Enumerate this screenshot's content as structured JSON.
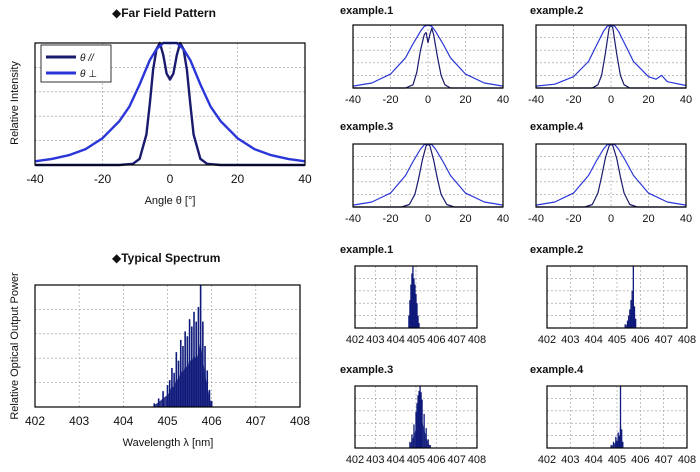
{
  "colors": {
    "parallel": "#1a1a6e",
    "perpendicular": "#2a36d8",
    "spectrum": "#0f1a7a",
    "grid": "#9a9a9a",
    "frame": "#000000"
  },
  "far_field": {
    "title": "◆Far Field Pattern",
    "xlabel": "Angle θ [°]",
    "ylabel": "Relative Intensity",
    "legend": [
      "θ //",
      "θ ⊥"
    ]
  },
  "spectrum": {
    "title": "◆Typical Spectrum",
    "xlabel": "Wavelength λ [nm]",
    "ylabel": "Relative Optical Output Power"
  },
  "chart_data": [
    {
      "id": "ffp-main",
      "type": "line",
      "title": "Far Field Pattern",
      "xlabel": "Angle θ [°]",
      "ylabel": "Relative Intensity",
      "xlim": [
        -40,
        40
      ],
      "ylim": [
        0,
        1
      ],
      "xticks": [
        -40,
        -20,
        0,
        20,
        40
      ],
      "grid": true,
      "legend": "top-left",
      "series": [
        {
          "name": "θ //",
          "x": [
            -40,
            -15,
            -11,
            -9,
            -7,
            -6,
            -5,
            -4,
            -3,
            -2,
            -1,
            0,
            1,
            2,
            3,
            4,
            5,
            6,
            7,
            9,
            11,
            15,
            40
          ],
          "y": [
            0,
            0,
            0.01,
            0.05,
            0.25,
            0.5,
            0.78,
            0.95,
            1.0,
            0.9,
            0.75,
            0.7,
            0.75,
            0.9,
            1.0,
            0.95,
            0.78,
            0.5,
            0.25,
            0.05,
            0.01,
            0,
            0
          ]
        },
        {
          "name": "θ ⊥",
          "x": [
            -40,
            -35,
            -30,
            -25,
            -20,
            -15,
            -12,
            -9,
            -6,
            -4,
            -2,
            0,
            2,
            4,
            6,
            9,
            12,
            15,
            20,
            25,
            30,
            35,
            40
          ],
          "y": [
            0.03,
            0.05,
            0.08,
            0.13,
            0.22,
            0.36,
            0.48,
            0.66,
            0.86,
            0.95,
            1.0,
            1.0,
            1.0,
            0.95,
            0.86,
            0.66,
            0.48,
            0.36,
            0.22,
            0.13,
            0.08,
            0.05,
            0.03
          ]
        }
      ]
    },
    {
      "id": "ffp-ex1",
      "type": "line",
      "title": "example.1",
      "xlim": [
        -40,
        40
      ],
      "ylim": [
        0,
        1
      ],
      "xticks": [
        -40,
        -20,
        0,
        20,
        40
      ],
      "grid": true,
      "series": [
        {
          "x": [
            -40,
            -12,
            -8,
            -6,
            -4,
            -2,
            -1,
            0,
            1,
            2,
            3,
            5,
            7,
            9,
            12,
            40
          ],
          "y": [
            0,
            0,
            0.05,
            0.25,
            0.6,
            0.85,
            0.88,
            0.72,
            0.85,
            0.95,
            0.85,
            0.5,
            0.2,
            0.05,
            0,
            0
          ]
        },
        {
          "x": [
            -40,
            -30,
            -20,
            -12,
            -8,
            -4,
            -2,
            0,
            2,
            4,
            8,
            12,
            20,
            30,
            40
          ],
          "y": [
            0.03,
            0.08,
            0.22,
            0.48,
            0.7,
            0.9,
            0.98,
            1.0,
            0.98,
            0.9,
            0.7,
            0.48,
            0.22,
            0.08,
            0.03
          ]
        }
      ]
    },
    {
      "id": "ffp-ex2",
      "type": "line",
      "title": "example.2",
      "xlim": [
        -40,
        40
      ],
      "ylim": [
        0,
        1
      ],
      "xticks": [
        -40,
        -20,
        0,
        20,
        40
      ],
      "grid": true,
      "series": [
        {
          "x": [
            -40,
            -10,
            -7,
            -5,
            -3,
            -1,
            0,
            1,
            3,
            5,
            7,
            10,
            40
          ],
          "y": [
            0,
            0,
            0.05,
            0.2,
            0.55,
            0.95,
            1.0,
            0.95,
            0.55,
            0.2,
            0.05,
            0,
            0
          ]
        },
        {
          "x": [
            -40,
            -30,
            -20,
            -12,
            -8,
            -4,
            -2,
            0,
            2,
            4,
            8,
            12,
            20,
            24,
            27,
            30,
            40
          ],
          "y": [
            0.03,
            0.06,
            0.18,
            0.42,
            0.66,
            0.9,
            0.98,
            1.0,
            0.98,
            0.9,
            0.66,
            0.42,
            0.18,
            0.14,
            0.2,
            0.1,
            0.04
          ]
        }
      ]
    },
    {
      "id": "ffp-ex3",
      "type": "line",
      "title": "example.3",
      "xlim": [
        -40,
        40
      ],
      "ylim": [
        0,
        1
      ],
      "xticks": [
        -40,
        -20,
        0,
        20,
        40
      ],
      "grid": true,
      "series": [
        {
          "x": [
            -40,
            -14,
            -10,
            -7,
            -5,
            -3,
            -1,
            0,
            1,
            3,
            5,
            7,
            10,
            14,
            40
          ],
          "y": [
            0,
            0,
            0.04,
            0.2,
            0.45,
            0.75,
            0.97,
            1.0,
            0.97,
            0.75,
            0.45,
            0.2,
            0.04,
            0,
            0
          ]
        },
        {
          "x": [
            -40,
            -30,
            -20,
            -12,
            -8,
            -4,
            -2,
            0,
            2,
            4,
            8,
            12,
            20,
            30,
            40
          ],
          "y": [
            0.03,
            0.08,
            0.22,
            0.5,
            0.72,
            0.92,
            0.99,
            1.0,
            0.99,
            0.92,
            0.72,
            0.5,
            0.22,
            0.08,
            0.03
          ]
        }
      ]
    },
    {
      "id": "ffp-ex4",
      "type": "line",
      "title": "example.4",
      "xlim": [
        -40,
        40
      ],
      "ylim": [
        0,
        1
      ],
      "xticks": [
        -40,
        -20,
        0,
        20,
        40
      ],
      "grid": true,
      "series": [
        {
          "x": [
            -40,
            -14,
            -10,
            -7,
            -5,
            -3,
            -1,
            0,
            1,
            3,
            5,
            7,
            10,
            14,
            40
          ],
          "y": [
            0,
            0,
            0.04,
            0.22,
            0.48,
            0.78,
            0.97,
            1.0,
            0.97,
            0.78,
            0.48,
            0.22,
            0.04,
            0,
            0
          ]
        },
        {
          "x": [
            -40,
            -30,
            -20,
            -12,
            -8,
            -4,
            -2,
            0,
            2,
            4,
            8,
            12,
            20,
            30,
            40
          ],
          "y": [
            0.03,
            0.08,
            0.22,
            0.5,
            0.72,
            0.92,
            0.99,
            1.0,
            0.99,
            0.92,
            0.72,
            0.5,
            0.22,
            0.08,
            0.03
          ]
        }
      ]
    },
    {
      "id": "spec-main",
      "type": "bar",
      "title": "Typical Spectrum",
      "xlabel": "Wavelength λ [nm]",
      "ylabel": "Relative Optical Output Power",
      "xlim": [
        402,
        408
      ],
      "ylim": [
        0,
        1
      ],
      "xticks": [
        402,
        403,
        404,
        405,
        406,
        407,
        408
      ],
      "grid": true,
      "lines": [
        [
          404.7,
          0.03
        ],
        [
          404.8,
          0.07
        ],
        [
          404.9,
          0.13
        ],
        [
          405.0,
          0.18
        ],
        [
          405.05,
          0.22
        ],
        [
          405.1,
          0.32
        ],
        [
          405.15,
          0.28
        ],
        [
          405.2,
          0.45
        ],
        [
          405.25,
          0.38
        ],
        [
          405.3,
          0.55
        ],
        [
          405.35,
          0.5
        ],
        [
          405.4,
          0.62
        ],
        [
          405.45,
          0.58
        ],
        [
          405.5,
          0.72
        ],
        [
          405.55,
          0.66
        ],
        [
          405.6,
          0.78
        ],
        [
          405.65,
          0.7
        ],
        [
          405.7,
          0.82
        ],
        [
          405.75,
          1.0
        ],
        [
          405.8,
          0.7
        ],
        [
          405.85,
          0.5
        ],
        [
          405.9,
          0.3
        ],
        [
          405.95,
          0.14
        ],
        [
          406.0,
          0.05
        ]
      ]
    },
    {
      "id": "spec-ex1",
      "type": "bar",
      "title": "example.1",
      "xlim": [
        402,
        408
      ],
      "ylim": [
        0,
        1
      ],
      "xticks": [
        402,
        403,
        404,
        405,
        406,
        407,
        408
      ],
      "grid": true,
      "lines": [
        [
          404.65,
          0.2
        ],
        [
          404.7,
          0.45
        ],
        [
          404.75,
          0.7
        ],
        [
          404.8,
          0.88
        ],
        [
          404.85,
          1.0
        ],
        [
          404.9,
          0.8
        ],
        [
          404.95,
          0.7
        ],
        [
          405.0,
          0.55
        ],
        [
          405.05,
          0.4
        ],
        [
          405.1,
          0.2
        ],
        [
          405.15,
          0.08
        ]
      ]
    },
    {
      "id": "spec-ex2",
      "type": "bar",
      "title": "example.2",
      "xlim": [
        402,
        408
      ],
      "ylim": [
        0,
        1
      ],
      "xticks": [
        402,
        403,
        404,
        405,
        406,
        407,
        408
      ],
      "grid": true,
      "lines": [
        [
          405.35,
          0.06
        ],
        [
          405.45,
          0.12
        ],
        [
          405.5,
          0.2
        ],
        [
          405.55,
          0.3
        ],
        [
          405.6,
          0.45
        ],
        [
          405.65,
          0.6
        ],
        [
          405.7,
          1.0
        ],
        [
          405.75,
          0.35
        ],
        [
          405.8,
          0.15
        ]
      ]
    },
    {
      "id": "spec-ex3",
      "type": "bar",
      "title": "example.3",
      "xlim": [
        402,
        408
      ],
      "ylim": [
        0,
        1
      ],
      "xticks": [
        402,
        403,
        404,
        405,
        406,
        407,
        408
      ],
      "grid": true,
      "lines": [
        [
          404.7,
          0.1
        ],
        [
          404.8,
          0.22
        ],
        [
          404.9,
          0.38
        ],
        [
          405.0,
          0.58
        ],
        [
          405.05,
          0.72
        ],
        [
          405.1,
          0.85
        ],
        [
          405.15,
          0.92
        ],
        [
          405.2,
          1.0
        ],
        [
          405.25,
          0.9
        ],
        [
          405.3,
          0.78
        ],
        [
          405.4,
          0.55
        ],
        [
          405.5,
          0.32
        ],
        [
          405.6,
          0.14
        ],
        [
          405.7,
          0.05
        ]
      ]
    },
    {
      "id": "spec-ex4",
      "type": "bar",
      "title": "example.4",
      "xlim": [
        402,
        408
      ],
      "ylim": [
        0,
        1
      ],
      "xticks": [
        402,
        403,
        404,
        405,
        406,
        407,
        408
      ],
      "grid": true,
      "lines": [
        [
          404.75,
          0.05
        ],
        [
          404.85,
          0.1
        ],
        [
          404.95,
          0.18
        ],
        [
          405.0,
          0.12
        ],
        [
          405.05,
          0.25
        ],
        [
          405.1,
          0.2
        ],
        [
          405.15,
          1.0
        ],
        [
          405.2,
          0.3
        ],
        [
          405.25,
          0.1
        ]
      ]
    }
  ]
}
